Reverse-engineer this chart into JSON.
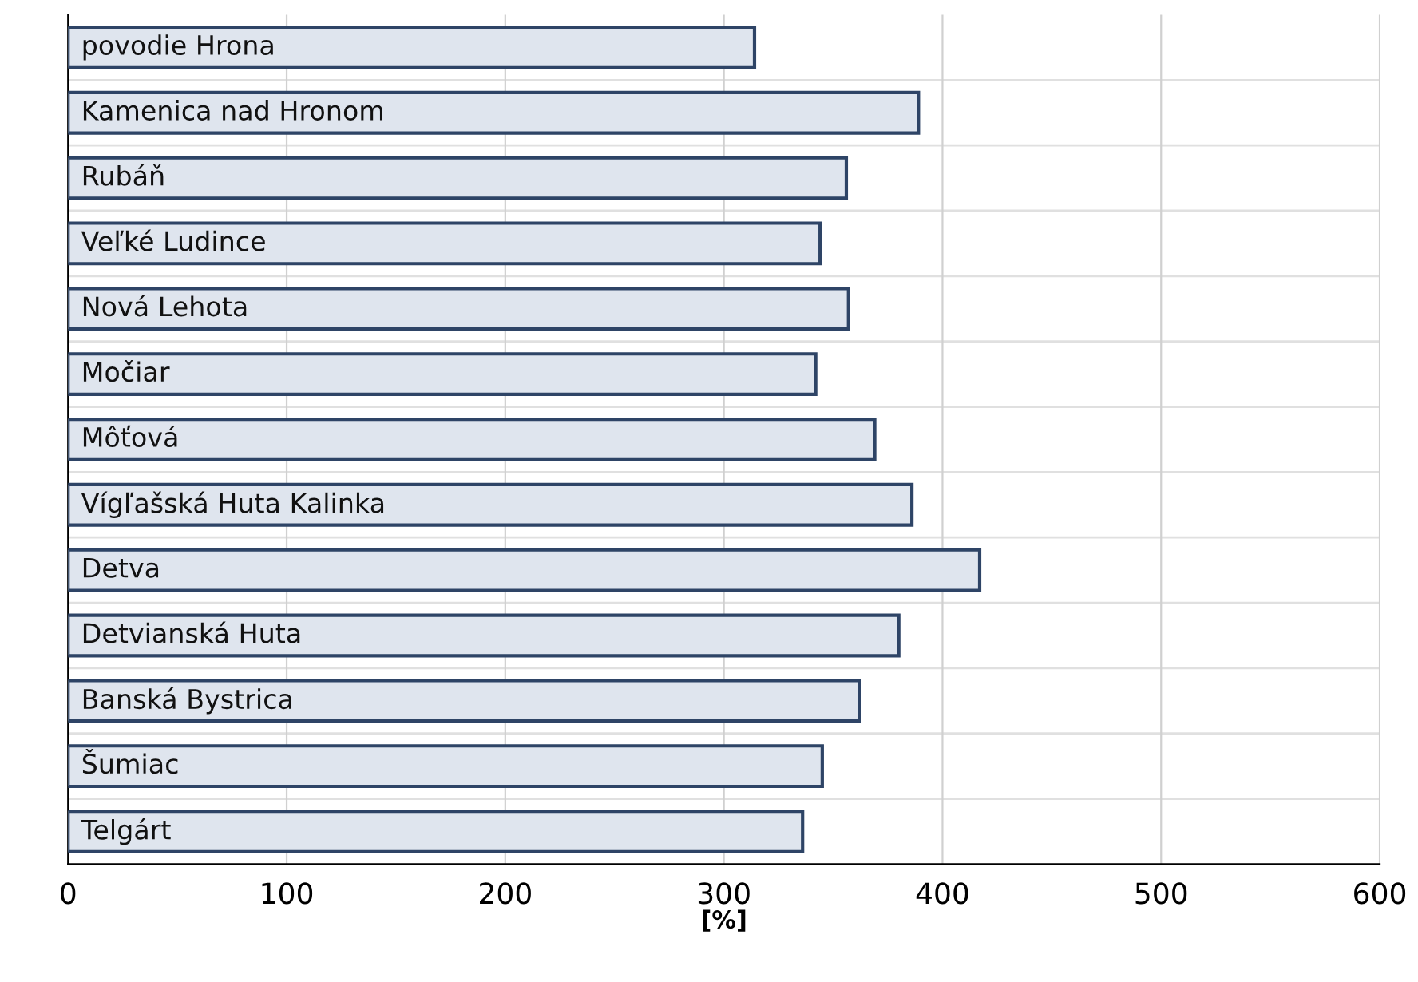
{
  "chart_data": {
    "type": "bar",
    "orientation": "horizontal",
    "xlabel": "[%]",
    "categories": [
      "povodie Hrona",
      "Kamenica nad Hronom",
      "Rubáň",
      "Veľké Ludince",
      "Nová Lehota",
      "Močiar",
      "Môťová",
      "Vígľašská Huta Kalinka",
      "Detva",
      "Detvianská Huta",
      "Banská Bystrica",
      "Šumiac",
      "Telgárt"
    ],
    "values": [
      314,
      389,
      356,
      344,
      357,
      342,
      369,
      386,
      417,
      380,
      362,
      345,
      336
    ],
    "color": "#2e4466",
    "xlim": [
      0,
      600
    ],
    "xticks": [
      0,
      100,
      200,
      300,
      400,
      500,
      600
    ],
    "grid": true
  }
}
